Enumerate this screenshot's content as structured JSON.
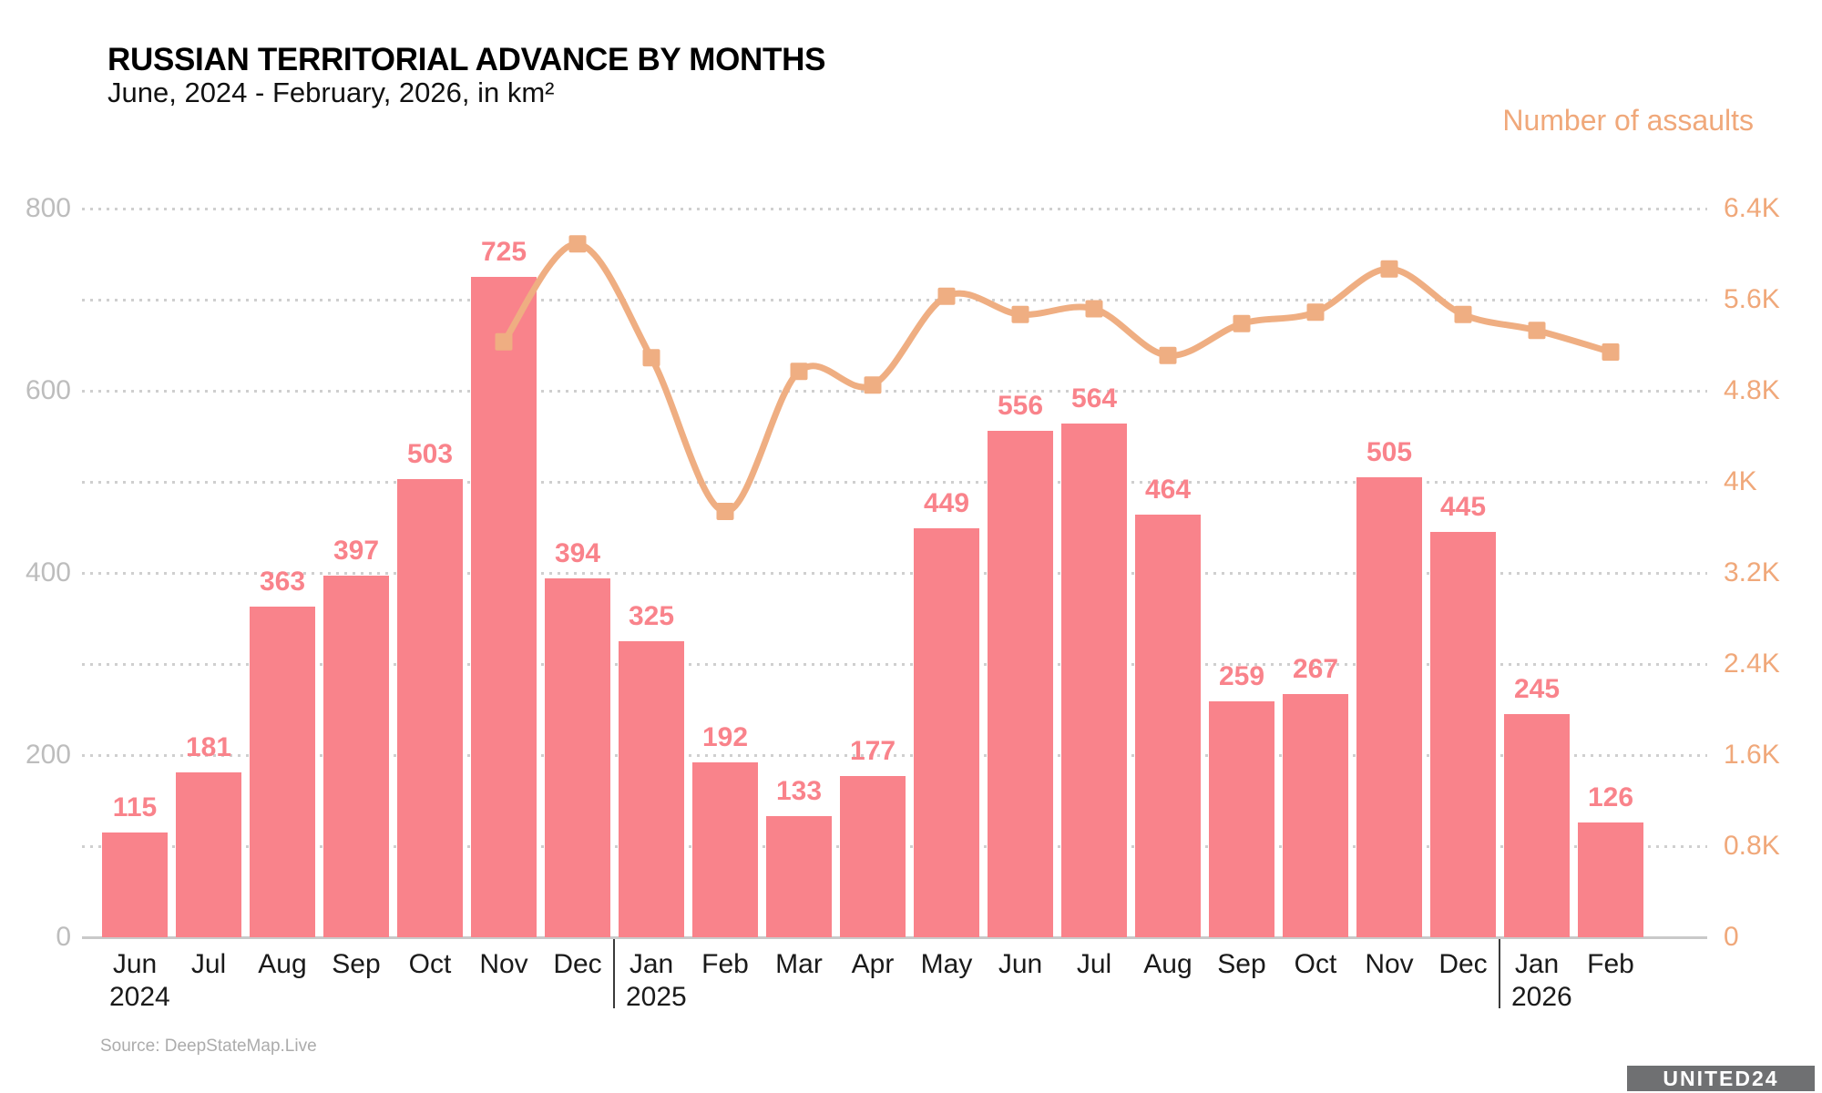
{
  "header": {
    "title": "RUSSIAN TERRITORIAL ADVANCE BY MONTHS",
    "subtitle": "June, 2024 - February, 2026, in km²"
  },
  "source": "Source: DeepStateMap.Live",
  "logo_text": "UNITED24",
  "colors": {
    "bar": "#F9838B",
    "line": "#EFAE82",
    "right_axis_text": "#F0A87A",
    "left_axis_text": "#BDBDBD",
    "grid": "#CFCFCF",
    "baseline": "#C9C9C9",
    "x_label_text": "#1A1A1A",
    "source_text": "#ACACAC",
    "year_divider": "#3A3A3A",
    "logo_background": "#6F7072",
    "logo_text_color": "#FFFFFF"
  },
  "chart_data": {
    "type": "bar+line",
    "title": "RUSSIAN TERRITORIAL ADVANCE BY MONTHS",
    "subtitle": "June, 2024 - February, 2026, in km²",
    "grid": true,
    "legend_position": "none",
    "categories": [
      "Jun",
      "Jul",
      "Aug",
      "Sep",
      "Oct",
      "Nov",
      "Dec",
      "Jan",
      "Feb",
      "Mar",
      "Apr",
      "May",
      "Jun",
      "Jul",
      "Aug",
      "Sep",
      "Oct",
      "Nov",
      "Dec",
      "Jan",
      "Feb"
    ],
    "year_markers": [
      {
        "index": 0,
        "year": "2024"
      },
      {
        "index": 7,
        "year": "2025"
      },
      {
        "index": 19,
        "year": "2026"
      }
    ],
    "series": [
      {
        "name": "Territorial advance, km²",
        "type": "bar",
        "axis": "left",
        "values": [
          115,
          181,
          363,
          397,
          503,
          725,
          394,
          325,
          192,
          133,
          177,
          449,
          556,
          564,
          464,
          259,
          267,
          505,
          445,
          245,
          126
        ]
      },
      {
        "name": "Number of assaults",
        "type": "line",
        "axis": "right",
        "values": [
          null,
          null,
          null,
          null,
          null,
          5230,
          6090,
          5090,
          3740,
          4970,
          4850,
          5630,
          5470,
          5520,
          5110,
          5390,
          5490,
          5870,
          5470,
          5330,
          5140
        ]
      }
    ],
    "left_axis": {
      "min": 0,
      "max": 800,
      "grid_step": 100,
      "tick_values": [
        0,
        200,
        400,
        600,
        800
      ],
      "tick_labels": [
        "0",
        "200",
        "400",
        "600",
        "800"
      ]
    },
    "right_axis": {
      "title": "Number of assaults",
      "min": 0,
      "max": 6400,
      "step": 800,
      "tick_labels": [
        "0",
        "0.8K",
        "1.6K",
        "2.4K",
        "3.2K",
        "4K",
        "4.8K",
        "5.6K",
        "6.4K"
      ]
    }
  }
}
